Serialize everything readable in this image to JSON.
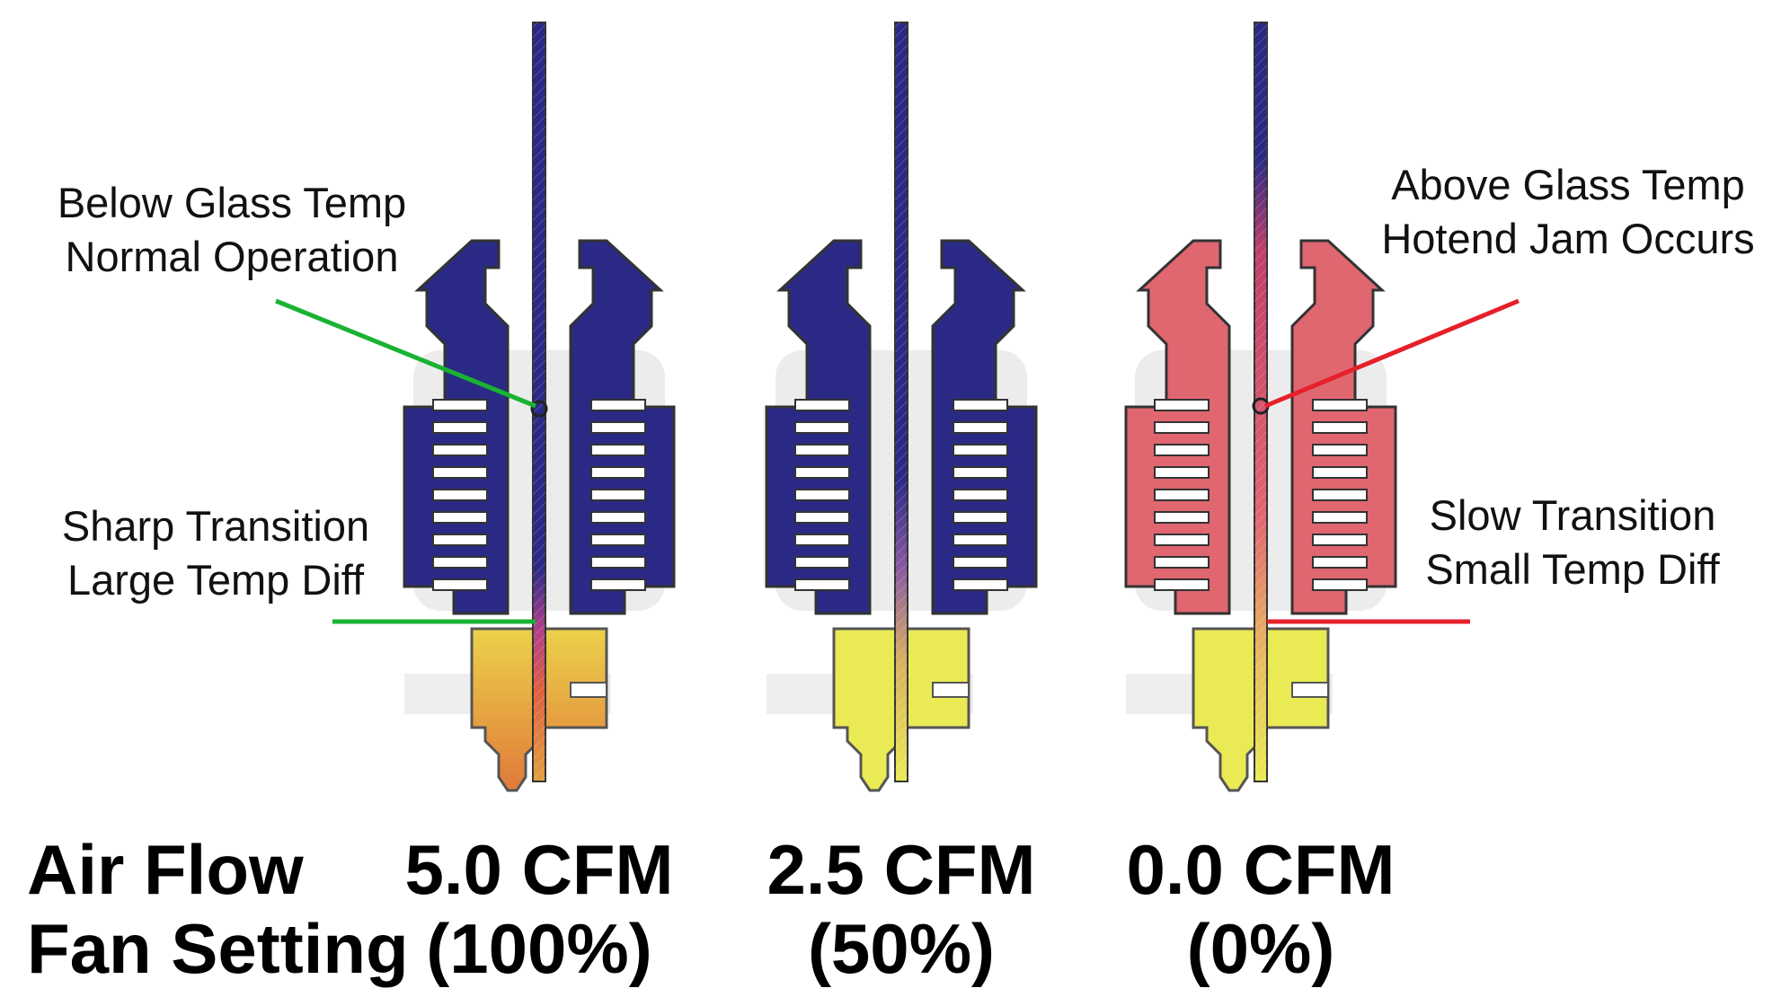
{
  "annotations": {
    "below_glass_line1": "Below Glass Temp",
    "below_glass_line2": "Normal Operation",
    "sharp_transition_line1": "Sharp Transition",
    "sharp_transition_line2": "Large Temp Diff",
    "above_glass_line1": "Above Glass Temp",
    "above_glass_line2": "Hotend Jam Occurs",
    "slow_transition_line1": "Slow Transition",
    "slow_transition_line2": "Small Temp Diff"
  },
  "row_labels": {
    "air_flow": "Air Flow",
    "fan_setting": "Fan Setting"
  },
  "hotends": [
    {
      "cfm": "5.0 CFM",
      "fan": "(100%)",
      "heatsink_color": "#2a2a86",
      "heatblock_color": "#e8c040",
      "nozzle_color": "#e08a40"
    },
    {
      "cfm": "2.5 CFM",
      "fan": "(50%)",
      "heatsink_color": "#2a2a86",
      "heatblock_color": "#eaea55",
      "nozzle_color": "#eaea55"
    },
    {
      "cfm": "0.0 CFM",
      "fan": "(0%)",
      "heatsink_color": "#e06670",
      "heatblock_color": "#eaea55",
      "nozzle_color": "#eaea55"
    }
  ],
  "colors": {
    "green_leader": "#19b233",
    "red_leader": "#e5202a",
    "filament_blue": "#2a2a86",
    "outline": "#333333"
  }
}
